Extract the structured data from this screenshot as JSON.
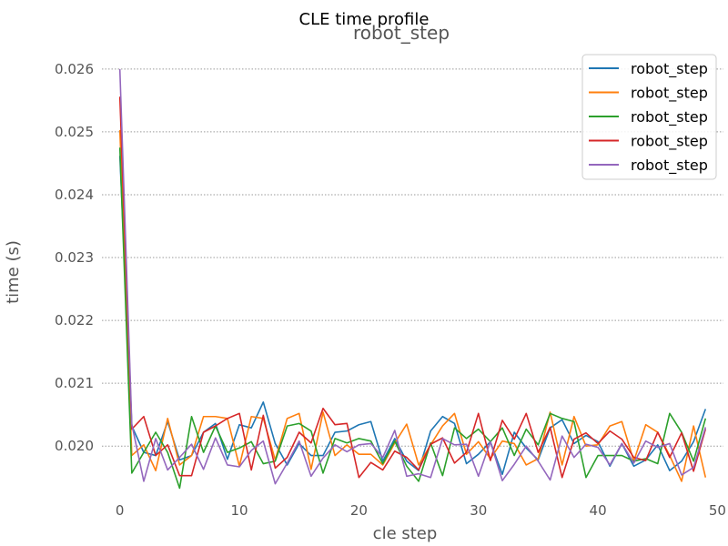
{
  "chart_data": {
    "type": "line",
    "suptitle": "CLE time profile",
    "title": "robot_step",
    "xlabel": "cle step",
    "ylabel": "time (s)",
    "xlim": [
      -1.5,
      50.5
    ],
    "ylim": [
      0.01925,
      0.02623
    ],
    "xticks": [
      0,
      10,
      20,
      30,
      40,
      50
    ],
    "yticks": [
      0.02,
      0.021,
      0.022,
      0.023,
      0.024,
      0.025,
      0.026
    ],
    "grid": "horizontal dotted",
    "legend_position": "top-right",
    "series": [
      {
        "name": "robot_step",
        "color": "#1f77b4",
        "values": [
          0.02462,
          0.02032,
          0.0199,
          0.01985,
          0.02039,
          0.01978,
          0.01985,
          0.02022,
          0.02036,
          0.01979,
          0.02034,
          0.02029,
          0.0207,
          0.02004,
          0.0197,
          0.02004,
          0.01985,
          0.01985,
          0.02022,
          0.02024,
          0.02034,
          0.02039,
          0.01976,
          0.02012,
          0.01976,
          0.01961,
          0.02024,
          0.02047,
          0.02036,
          0.01972,
          0.01987,
          0.02007,
          0.01955,
          0.02022,
          0.01997,
          0.01978,
          0.02029,
          0.02042,
          0.02004,
          0.02017,
          0.02007,
          0.01968,
          0.02004,
          0.01968,
          0.01978,
          0.02002,
          0.01961,
          0.01976,
          0.02007,
          0.02059
        ]
      },
      {
        "name": "robot_step",
        "color": "#ff7f0e",
        "values": [
          0.02503,
          0.01985,
          0.02002,
          0.01961,
          0.02044,
          0.0197,
          0.01985,
          0.02047,
          0.02047,
          0.02044,
          0.01968,
          0.02047,
          0.02044,
          0.01978,
          0.02044,
          0.02052,
          0.01963,
          0.02054,
          0.01985,
          0.02002,
          0.01987,
          0.01987,
          0.0197,
          0.02005,
          0.02035,
          0.0197,
          0.02002,
          0.02032,
          0.02052,
          0.01987,
          0.02007,
          0.0198,
          0.02008,
          0.02004,
          0.0197,
          0.0198,
          0.02054,
          0.0197,
          0.02047,
          0.02,
          0.02002,
          0.02032,
          0.02039,
          0.01976,
          0.02034,
          0.02022,
          0.01985,
          0.01944,
          0.02032,
          0.0195
        ]
      },
      {
        "name": "robot_step",
        "color": "#2ca02c",
        "values": [
          0.02475,
          0.01957,
          0.0199,
          0.02022,
          0.0199,
          0.01933,
          0.02047,
          0.0199,
          0.02032,
          0.0199,
          0.01997,
          0.02007,
          0.01972,
          0.01976,
          0.02032,
          0.02036,
          0.02024,
          0.01957,
          0.02012,
          0.02005,
          0.02012,
          0.02008,
          0.01972,
          0.02008,
          0.01968,
          0.01944,
          0.02005,
          0.01953,
          0.02029,
          0.02012,
          0.02027,
          0.02007,
          0.02029,
          0.01985,
          0.02027,
          0.02002,
          0.02052,
          0.02044,
          0.02039,
          0.0195,
          0.01985,
          0.01985,
          0.01985,
          0.01976,
          0.0198,
          0.01972,
          0.02052,
          0.02022,
          0.01976,
          0.02044
        ]
      },
      {
        "name": "robot_step",
        "color": "#d62728",
        "values": [
          0.02556,
          0.02027,
          0.02047,
          0.01985,
          0.02002,
          0.01953,
          0.01953,
          0.02022,
          0.02032,
          0.02044,
          0.02052,
          0.01962,
          0.02049,
          0.01965,
          0.01982,
          0.02022,
          0.02005,
          0.0206,
          0.02034,
          0.02036,
          0.0195,
          0.01974,
          0.01962,
          0.01992,
          0.01982,
          0.01962,
          0.02003,
          0.02013,
          0.01973,
          0.0199,
          0.02052,
          0.01977,
          0.02041,
          0.02011,
          0.02052,
          0.0199,
          0.0203,
          0.0195,
          0.02011,
          0.02021,
          0.02004,
          0.02024,
          0.02011,
          0.01982,
          0.01977,
          0.02022,
          0.01982,
          0.02021,
          0.0196,
          0.02027
        ]
      },
      {
        "name": "robot_step",
        "color": "#9467bd",
        "values": [
          0.026,
          0.02035,
          0.01944,
          0.02012,
          0.01962,
          0.01982,
          0.02003,
          0.01963,
          0.02013,
          0.0197,
          0.01967,
          0.01993,
          0.02008,
          0.0194,
          0.01973,
          0.02008,
          0.01952,
          0.01981,
          0.02002,
          0.01991,
          0.02002,
          0.02004,
          0.01982,
          0.02025,
          0.01952,
          0.01956,
          0.0195,
          0.02012,
          0.02002,
          0.02003,
          0.01952,
          0.02007,
          0.01945,
          0.01971,
          0.02,
          0.01976,
          0.01946,
          0.02016,
          0.01982,
          0.02003,
          0.01998,
          0.0197,
          0.02004,
          0.01973,
          0.02008,
          0.01998,
          0.02004,
          0.01954,
          0.01966,
          0.0203
        ]
      }
    ]
  }
}
